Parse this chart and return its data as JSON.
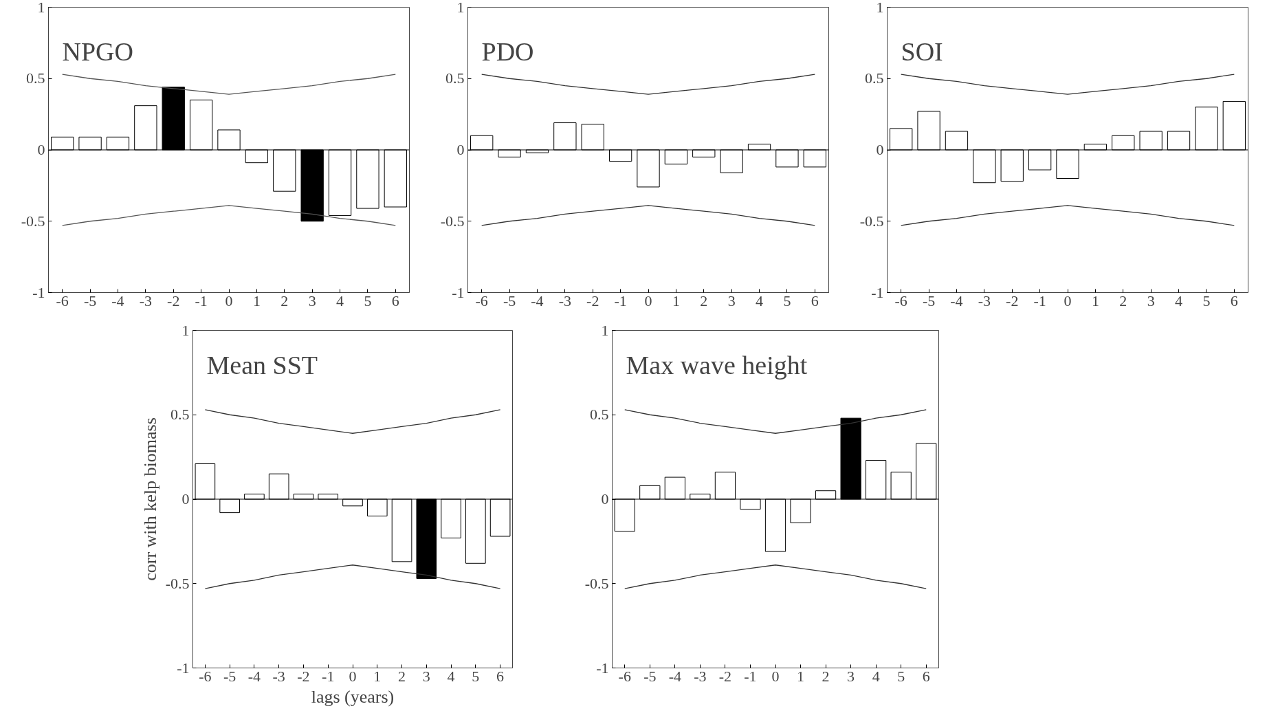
{
  "chart_data": [
    {
      "type": "bar",
      "title": "NPGO",
      "x": [
        -6,
        -5,
        -4,
        -3,
        -2,
        -1,
        0,
        1,
        2,
        3,
        4,
        5,
        6
      ],
      "xlim": [
        -6.5,
        6.5
      ],
      "ylim": [
        -1,
        1
      ],
      "xticks": [
        -6,
        -5,
        -4,
        -3,
        -2,
        -1,
        0,
        1,
        2,
        3,
        4,
        5,
        6
      ],
      "yticks": [
        -1,
        -0.5,
        0,
        0.5,
        1
      ],
      "grid": false,
      "ref_lines": [
        {
          "axis": "y",
          "value": 0
        }
      ],
      "series": [
        {
          "color": "#ffffff",
          "colors": [
            "#ffffff",
            "#ffffff",
            "#ffffff",
            "#ffffff",
            "#000000",
            "#ffffff",
            "#ffffff",
            "#ffffff",
            "#ffffff",
            "#000000",
            "#ffffff",
            "#ffffff",
            "#ffffff"
          ],
          "values": [
            0.09,
            0.09,
            0.09,
            0.31,
            0.44,
            0.35,
            0.14,
            -0.09,
            -0.29,
            -0.5,
            -0.46,
            -0.41,
            -0.4
          ]
        },
        {
          "type": "line",
          "color": "#555555",
          "values": [
            0.53,
            0.5,
            0.48,
            0.45,
            0.43,
            0.41,
            0.39,
            0.41,
            0.43,
            0.45,
            0.48,
            0.5,
            0.53
          ]
        },
        {
          "type": "line",
          "color": "#555555",
          "values": [
            -0.53,
            -0.5,
            -0.48,
            -0.45,
            -0.43,
            -0.41,
            -0.39,
            -0.41,
            -0.43,
            -0.45,
            -0.48,
            -0.5,
            -0.53
          ]
        }
      ]
    },
    {
      "type": "bar",
      "title": "PDO",
      "x": [
        -6,
        -5,
        -4,
        -3,
        -2,
        -1,
        0,
        1,
        2,
        3,
        4,
        5,
        6
      ],
      "xlim": [
        -6.5,
        6.5
      ],
      "ylim": [
        -1,
        1
      ],
      "xticks": [
        -6,
        -5,
        -4,
        -3,
        -2,
        -1,
        0,
        1,
        2,
        3,
        4,
        5,
        6
      ],
      "yticks": [
        -1,
        -0.5,
        0,
        0.5,
        1
      ],
      "grid": false,
      "ref_lines": [
        {
          "axis": "y",
          "value": 0
        }
      ],
      "series": [
        {
          "color": "#ffffff",
          "colors": [
            "#ffffff",
            "#ffffff",
            "#ffffff",
            "#ffffff",
            "#ffffff",
            "#ffffff",
            "#ffffff",
            "#ffffff",
            "#ffffff",
            "#ffffff",
            "#ffffff",
            "#ffffff",
            "#ffffff"
          ],
          "values": [
            0.1,
            -0.05,
            -0.02,
            0.19,
            0.18,
            -0.08,
            -0.26,
            -0.1,
            -0.05,
            -0.16,
            0.04,
            -0.12,
            -0.12
          ]
        },
        {
          "type": "line",
          "color": "#333333",
          "values": [
            0.53,
            0.5,
            0.48,
            0.45,
            0.43,
            0.41,
            0.39,
            0.41,
            0.43,
            0.45,
            0.48,
            0.5,
            0.53
          ]
        },
        {
          "type": "line",
          "color": "#333333",
          "values": [
            -0.53,
            -0.5,
            -0.48,
            -0.45,
            -0.43,
            -0.41,
            -0.39,
            -0.41,
            -0.43,
            -0.45,
            -0.48,
            -0.5,
            -0.53
          ]
        }
      ]
    },
    {
      "type": "bar",
      "title": "SOI",
      "x": [
        -6,
        -5,
        -4,
        -3,
        -2,
        -1,
        0,
        1,
        2,
        3,
        4,
        5,
        6
      ],
      "xlim": [
        -6.5,
        6.5
      ],
      "ylim": [
        -1,
        1
      ],
      "xticks": [
        -6,
        -5,
        -4,
        -3,
        -2,
        -1,
        0,
        1,
        2,
        3,
        4,
        5,
        6
      ],
      "yticks": [
        -1,
        -0.5,
        0,
        0.5,
        1
      ],
      "grid": false,
      "ref_lines": [
        {
          "axis": "y",
          "value": 0
        }
      ],
      "series": [
        {
          "color": "#ffffff",
          "colors": [
            "#ffffff",
            "#ffffff",
            "#ffffff",
            "#ffffff",
            "#ffffff",
            "#ffffff",
            "#ffffff",
            "#ffffff",
            "#ffffff",
            "#ffffff",
            "#ffffff",
            "#ffffff",
            "#ffffff"
          ],
          "values": [
            0.15,
            0.27,
            0.13,
            -0.23,
            -0.22,
            -0.14,
            -0.2,
            0.04,
            0.1,
            0.13,
            0.13,
            0.3,
            0.34
          ]
        },
        {
          "type": "line",
          "color": "#333333",
          "values": [
            0.53,
            0.5,
            0.48,
            0.45,
            0.43,
            0.41,
            0.39,
            0.41,
            0.43,
            0.45,
            0.48,
            0.5,
            0.53
          ]
        },
        {
          "type": "line",
          "color": "#333333",
          "values": [
            -0.53,
            -0.5,
            -0.48,
            -0.45,
            -0.43,
            -0.41,
            -0.39,
            -0.41,
            -0.43,
            -0.45,
            -0.48,
            -0.5,
            -0.53
          ]
        }
      ]
    },
    {
      "type": "bar",
      "title": "Mean SST",
      "xlabel": "lags (years)",
      "ylabel": "corr with kelp biomass",
      "x": [
        -6,
        -5,
        -4,
        -3,
        -2,
        -1,
        0,
        1,
        2,
        3,
        4,
        5,
        6
      ],
      "xlim": [
        -6.5,
        6.5
      ],
      "ylim": [
        -1,
        1
      ],
      "xticks": [
        -6,
        -5,
        -4,
        -3,
        -2,
        -1,
        0,
        1,
        2,
        3,
        4,
        5,
        6
      ],
      "yticks": [
        -1,
        -0.5,
        0,
        0.5,
        1
      ],
      "grid": false,
      "ref_lines": [
        {
          "axis": "y",
          "value": 0
        }
      ],
      "series": [
        {
          "color": "#ffffff",
          "colors": [
            "#ffffff",
            "#ffffff",
            "#ffffff",
            "#ffffff",
            "#ffffff",
            "#ffffff",
            "#ffffff",
            "#ffffff",
            "#ffffff",
            "#000000",
            "#ffffff",
            "#ffffff",
            "#ffffff"
          ],
          "values": [
            0.21,
            -0.08,
            0.03,
            0.15,
            0.03,
            0.03,
            -0.04,
            -0.1,
            -0.37,
            -0.47,
            -0.23,
            -0.38,
            -0.22
          ]
        },
        {
          "type": "line",
          "color": "#333333",
          "values": [
            0.53,
            0.5,
            0.48,
            0.45,
            0.43,
            0.41,
            0.39,
            0.41,
            0.43,
            0.45,
            0.48,
            0.5,
            0.53
          ]
        },
        {
          "type": "line",
          "color": "#333333",
          "values": [
            -0.53,
            -0.5,
            -0.48,
            -0.45,
            -0.43,
            -0.41,
            -0.39,
            -0.41,
            -0.43,
            -0.45,
            -0.48,
            -0.5,
            -0.53
          ]
        }
      ]
    },
    {
      "type": "bar",
      "title": "Max wave height",
      "x": [
        -6,
        -5,
        -4,
        -3,
        -2,
        -1,
        0,
        1,
        2,
        3,
        4,
        5,
        6
      ],
      "xlim": [
        -6.5,
        6.5
      ],
      "ylim": [
        -1,
        1
      ],
      "xticks": [
        -6,
        -5,
        -4,
        -3,
        -2,
        -1,
        0,
        1,
        2,
        3,
        4,
        5,
        6
      ],
      "yticks": [
        -1,
        -0.5,
        0,
        0.5,
        1
      ],
      "grid": false,
      "ref_lines": [
        {
          "axis": "y",
          "value": 0
        }
      ],
      "series": [
        {
          "color": "#ffffff",
          "colors": [
            "#ffffff",
            "#ffffff",
            "#ffffff",
            "#ffffff",
            "#ffffff",
            "#ffffff",
            "#ffffff",
            "#ffffff",
            "#ffffff",
            "#000000",
            "#ffffff",
            "#ffffff",
            "#ffffff"
          ],
          "values": [
            -0.19,
            0.08,
            0.13,
            0.03,
            0.16,
            -0.06,
            -0.31,
            -0.14,
            0.05,
            0.48,
            0.23,
            0.16,
            0.33
          ]
        },
        {
          "type": "line",
          "color": "#333333",
          "values": [
            0.53,
            0.5,
            0.48,
            0.45,
            0.43,
            0.41,
            0.39,
            0.41,
            0.43,
            0.45,
            0.48,
            0.5,
            0.53
          ]
        },
        {
          "type": "line",
          "color": "#333333",
          "values": [
            -0.53,
            -0.5,
            -0.48,
            -0.45,
            -0.43,
            -0.41,
            -0.39,
            -0.41,
            -0.43,
            -0.45,
            -0.48,
            -0.5,
            -0.53
          ]
        }
      ]
    }
  ]
}
